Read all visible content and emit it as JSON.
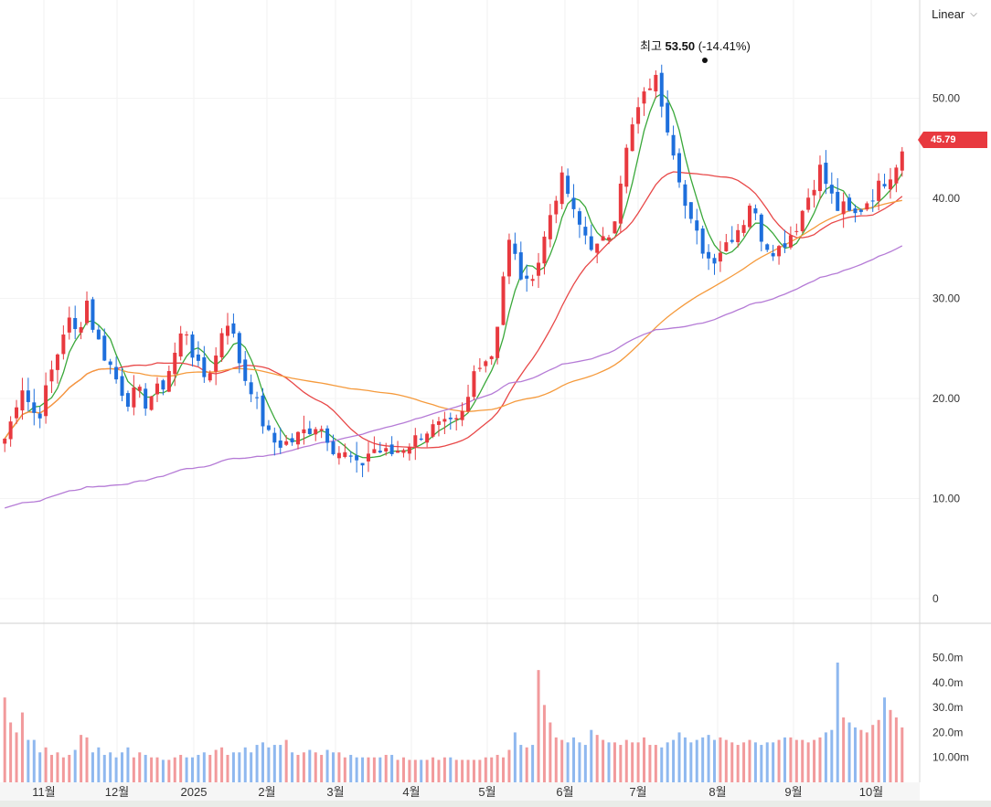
{
  "scale_mode": "Linear",
  "last_price_label": "45.79",
  "max_marker": {
    "prefix": "최고",
    "value": "53.50",
    "change": "(-14.41%)"
  },
  "chart_data": {
    "type": "candlestick",
    "price_axis_ticks": [
      "50.00",
      "40.00",
      "30.00",
      "20.00",
      "10.00",
      "0"
    ],
    "volume_axis_ticks": [
      "50.0m",
      "40.0m",
      "30.0m",
      "20.0m",
      "10.00m"
    ],
    "x_tick_labels": [
      "11월",
      "12월",
      "2025",
      "2월",
      "3월",
      "4월",
      "5월",
      "6월",
      "7월",
      "8월",
      "9월",
      "10월"
    ],
    "ylim": [
      0,
      55
    ],
    "volume_ylim": [
      0,
      55
    ],
    "up_color": "#e8393f",
    "down_color": "#1e6fdc",
    "ma_colors": [
      "#3aa83a",
      "#e84848",
      "#f59a3c",
      "#b57bd6"
    ],
    "price_path": [
      [
        0,
        16
      ],
      [
        0.4,
        17.8
      ],
      [
        1,
        21.5
      ],
      [
        1.6,
        19
      ],
      [
        2,
        18
      ],
      [
        2.3,
        19.5
      ],
      [
        2.7,
        22
      ],
      [
        3.2,
        24.5
      ],
      [
        3.5,
        26.5
      ],
      [
        3.9,
        28
      ],
      [
        4,
        26
      ],
      [
        4.6,
        27.5
      ],
      [
        4.9,
        30.5
      ],
      [
        5.2,
        28
      ],
      [
        5.6,
        26
      ],
      [
        6,
        24.5
      ],
      [
        6.5,
        23
      ],
      [
        7,
        21
      ],
      [
        7.3,
        20.5
      ],
      [
        7.6,
        19.5
      ],
      [
        8,
        21
      ],
      [
        8.5,
        19.5
      ],
      [
        9,
        20.5
      ],
      [
        9.5,
        21
      ],
      [
        9.8,
        22
      ],
      [
        10.2,
        24
      ],
      [
        10.6,
        25.5
      ],
      [
        10.9,
        28
      ],
      [
        11,
        27
      ],
      [
        11.5,
        24
      ],
      [
        12,
        22
      ],
      [
        12.5,
        23
      ],
      [
        12.9,
        24.5
      ],
      [
        13.1,
        26.5
      ],
      [
        13.5,
        28
      ],
      [
        13.9,
        26
      ],
      [
        14.1,
        24.5
      ],
      [
        14.6,
        22
      ],
      [
        15,
        21
      ],
      [
        15.4,
        19
      ],
      [
        15.8,
        17
      ],
      [
        16.1,
        16
      ],
      [
        16.5,
        15.5
      ],
      [
        17,
        15.5
      ],
      [
        17.5,
        15.8
      ],
      [
        18,
        16.5
      ],
      [
        18.5,
        17
      ],
      [
        19,
        17.5
      ],
      [
        19.5,
        16.5
      ],
      [
        20,
        15
      ],
      [
        20.5,
        14.5
      ],
      [
        21,
        14
      ],
      [
        21.3,
        13
      ],
      [
        21.7,
        13.5
      ],
      [
        22,
        14.5
      ],
      [
        22.5,
        15
      ],
      [
        23,
        14.5
      ],
      [
        23.5,
        14.5
      ],
      [
        24,
        15
      ],
      [
        24.5,
        15.5
      ],
      [
        25,
        16
      ],
      [
        25.5,
        16.8
      ],
      [
        26,
        17
      ],
      [
        26.5,
        17.2
      ],
      [
        27,
        17.2
      ],
      [
        27.5,
        17.5
      ],
      [
        28,
        19
      ],
      [
        28.3,
        21
      ],
      [
        28.6,
        23.5
      ],
      [
        29,
        24
      ],
      [
        29.5,
        24
      ],
      [
        29.8,
        26
      ],
      [
        30.1,
        30
      ],
      [
        30.4,
        34
      ],
      [
        30.7,
        36
      ],
      [
        31,
        34
      ],
      [
        31.4,
        32
      ],
      [
        31.8,
        31
      ],
      [
        32.1,
        33
      ],
      [
        32.5,
        34
      ],
      [
        32.9,
        37
      ],
      [
        33.3,
        39.5
      ],
      [
        33.6,
        41
      ],
      [
        33.9,
        42
      ],
      [
        34.3,
        40
      ],
      [
        34.6,
        38
      ],
      [
        35,
        37
      ],
      [
        35.4,
        36
      ],
      [
        35.8,
        35
      ],
      [
        36.1,
        35
      ],
      [
        36.5,
        36
      ],
      [
        36.9,
        37
      ],
      [
        37.2,
        40
      ],
      [
        37.5,
        43
      ],
      [
        37.8,
        45
      ],
      [
        38.1,
        47
      ],
      [
        38.5,
        49
      ],
      [
        38.8,
        50
      ],
      [
        39.1,
        51
      ],
      [
        39.4,
        52.5
      ],
      [
        39.7,
        51
      ],
      [
        40,
        49
      ],
      [
        40.3,
        47
      ],
      [
        40.6,
        45
      ],
      [
        40.9,
        43
      ],
      [
        41.2,
        40
      ],
      [
        41.5,
        38
      ],
      [
        41.8,
        37
      ],
      [
        42.1,
        36
      ],
      [
        42.4,
        35
      ],
      [
        42.7,
        34
      ],
      [
        43,
        34
      ],
      [
        43.5,
        35
      ],
      [
        44,
        36
      ],
      [
        44.5,
        37
      ],
      [
        45,
        38
      ],
      [
        45.3,
        40
      ],
      [
        45.6,
        38
      ],
      [
        46,
        36
      ],
      [
        46.5,
        35
      ],
      [
        47,
        35
      ],
      [
        47.5,
        36
      ],
      [
        48,
        37
      ],
      [
        48.5,
        39
      ],
      [
        49,
        41
      ],
      [
        49.5,
        43
      ],
      [
        50,
        41
      ],
      [
        50.5,
        39
      ],
      [
        51,
        39
      ],
      [
        51.5,
        38
      ],
      [
        52,
        39
      ],
      [
        52.5,
        40
      ],
      [
        53,
        41
      ],
      [
        53.5,
        42
      ],
      [
        54,
        43
      ],
      [
        54.5,
        45
      ]
    ],
    "volumes": [
      34,
      24,
      20,
      28,
      17,
      17,
      12,
      14,
      11,
      12,
      10,
      11,
      13,
      19,
      18,
      12,
      14,
      11,
      12,
      10,
      12,
      14,
      10,
      12,
      11,
      10,
      10,
      9,
      9,
      10,
      11,
      10,
      10,
      11,
      12,
      11,
      13,
      14,
      11,
      12,
      12,
      14,
      12,
      15,
      16,
      14,
      15,
      15,
      17,
      12,
      11,
      12,
      13,
      12,
      11,
      13,
      12,
      12,
      10,
      11,
      10,
      10,
      10,
      10,
      10,
      11,
      11,
      9,
      10,
      9,
      9,
      9,
      9,
      10,
      9,
      10,
      10,
      9,
      9,
      9,
      9,
      9,
      10,
      10,
      11,
      10,
      13,
      20,
      15,
      14,
      15,
      45,
      31,
      24,
      18,
      17,
      16,
      18,
      16,
      15,
      21,
      19,
      17,
      16,
      16,
      15,
      17,
      16,
      16,
      18,
      15,
      15,
      14,
      16,
      17,
      20,
      18,
      16,
      17,
      18,
      19,
      17,
      18,
      17,
      16,
      15,
      16,
      17,
      16,
      15,
      16,
      16,
      17,
      18,
      18,
      17,
      17,
      16,
      17,
      18,
      20,
      21,
      48,
      26,
      24,
      22,
      21,
      20,
      23,
      25,
      34,
      29,
      26,
      22
    ]
  }
}
